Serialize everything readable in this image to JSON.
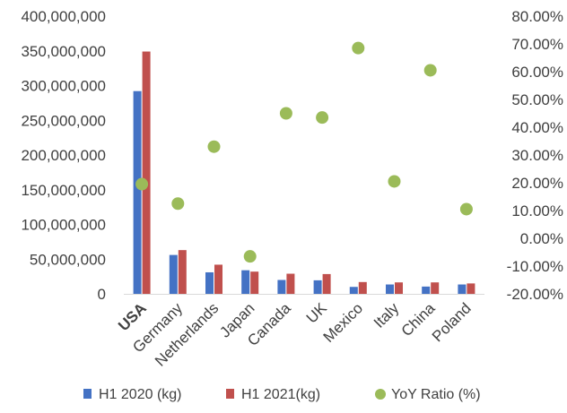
{
  "chart_data": {
    "type": "bar",
    "categories": [
      "USA",
      "Germany",
      "Netherlands",
      "Japan",
      "Canada",
      "UK",
      "Mexico",
      "Italy",
      "China",
      "Poland"
    ],
    "series": [
      {
        "name": "H1 2020 (kg)",
        "type": "bar",
        "axis": "left",
        "color": "#4472C4",
        "values": [
          292000000,
          56000000,
          31000000,
          34000000,
          20000000,
          19500000,
          10000000,
          13500000,
          10500000,
          13500000
        ]
      },
      {
        "name": "H1 2021(kg)",
        "type": "bar",
        "axis": "left",
        "color": "#C0504D",
        "values": [
          349000000,
          63000000,
          42000000,
          32000000,
          29000000,
          28500000,
          17000000,
          16500000,
          16500000,
          15000000
        ]
      },
      {
        "name": "YoY Ratio (%)",
        "type": "scatter",
        "axis": "right",
        "color": "#9BBB59",
        "values": [
          19.5,
          12.5,
          33,
          -6.5,
          45,
          43.5,
          68.5,
          20.5,
          60.5,
          10.5
        ]
      }
    ],
    "title": "",
    "xlabel": "",
    "ylabel": "",
    "ylim": [
      0,
      400000000
    ],
    "y2lim": [
      -20,
      80
    ],
    "y_ticks": [
      "0",
      "50,000,000",
      "100,000,000",
      "150,000,000",
      "200,000,000",
      "250,000,000",
      "300,000,000",
      "350,000,000",
      "400,000,000"
    ],
    "y2_ticks": [
      "-20.00%",
      "-10.00%",
      "0.00%",
      "10.00%",
      "20.00%",
      "30.00%",
      "40.00%",
      "50.00%",
      "60.00%",
      "70.00%",
      "80.00%"
    ],
    "grid": false,
    "legend_position": "bottom"
  }
}
